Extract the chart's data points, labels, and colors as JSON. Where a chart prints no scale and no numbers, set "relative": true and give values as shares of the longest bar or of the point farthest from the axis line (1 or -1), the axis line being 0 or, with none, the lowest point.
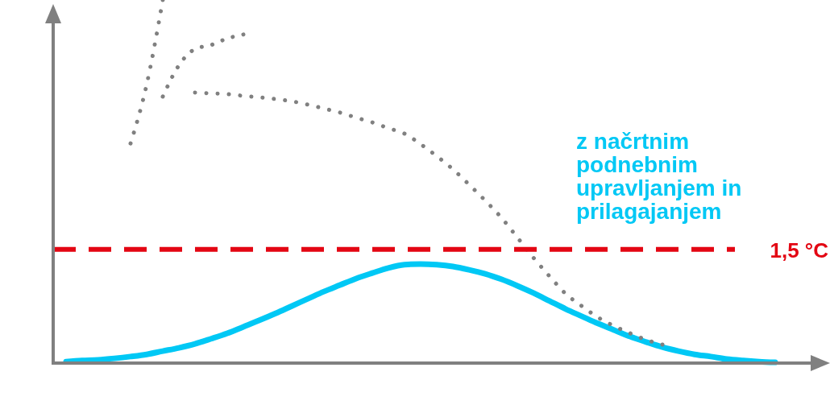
{
  "chart_data": {
    "type": "line",
    "relative": true,
    "categories": [
      null,
      null,
      null,
      null,
      null,
      null,
      null,
      null,
      null,
      null,
      null,
      null,
      null,
      null,
      null,
      null,
      null,
      null,
      null,
      null,
      null,
      null,
      null,
      null,
      null,
      null,
      null,
      null,
      null,
      null,
      null,
      null,
      null,
      null,
      null,
      null,
      null,
      null,
      null,
      null,
      null,
      null,
      null,
      null,
      null
    ],
    "series": [
      {
        "name": "z načrtnim podnebnim upravljanjem in prilagajanjem",
        "color": "#00c8f5",
        "line_style": "solid",
        "values": [
          0.004,
          0.007,
          0.009,
          0.013,
          0.018,
          0.024,
          0.033,
          0.042,
          0.053,
          0.067,
          0.082,
          0.1,
          0.118,
          0.137,
          0.157,
          0.177,
          0.197,
          0.215,
          0.233,
          0.248,
          0.262,
          0.271,
          0.273,
          0.271,
          0.266,
          0.257,
          0.246,
          0.231,
          0.213,
          0.193,
          0.171,
          0.149,
          0.129,
          0.109,
          0.091,
          0.073,
          0.058,
          0.044,
          0.033,
          0.024,
          0.018,
          0.011,
          0.007,
          0.004,
          0.002
        ]
      },
      {
        "color": "#808080",
        "line_style": "dotted",
        "values": [
          null,
          null,
          null,
          null,
          0.605,
          0.767,
          1,
          null,
          null,
          null,
          null,
          null,
          null,
          null,
          null,
          null,
          null,
          null,
          null,
          null,
          null,
          null,
          null,
          null,
          null,
          null,
          null,
          null,
          null,
          null,
          null,
          null,
          null,
          null,
          null,
          null,
          null,
          null,
          null,
          null,
          null,
          null,
          null,
          null,
          null
        ]
      },
      {
        "color": "#808080",
        "line_style": "dotted",
        "values": [
          null,
          null,
          null,
          null,
          null,
          null,
          0.734,
          0.82,
          0.865,
          0.876,
          0.894,
          0.905,
          null,
          null,
          null,
          null,
          null,
          null,
          null,
          null,
          null,
          null,
          null,
          null,
          null,
          null,
          null,
          null,
          null,
          null,
          null,
          null,
          null,
          null,
          null,
          null,
          null,
          null,
          null,
          null,
          null,
          null,
          null,
          null,
          null
        ]
      },
      {
        "color": "#808080",
        "line_style": "dotted",
        "values": [
          null,
          null,
          null,
          null,
          null,
          null,
          null,
          null,
          0.745,
          0.743,
          0.741,
          0.736,
          0.732,
          0.727,
          0.721,
          0.712,
          0.701,
          0.69,
          0.676,
          0.663,
          0.647,
          0.632,
          0.603,
          0.57,
          0.534,
          0.492,
          0.448,
          0.401,
          0.346,
          0.29,
          0.239,
          0.191,
          0.157,
          0.126,
          0.102,
          0.082,
          0.064,
          0.051,
          null,
          null,
          null,
          null,
          null,
          null,
          null
        ]
      }
    ],
    "ref_lines": [
      {
        "axis": "y",
        "value": 0.313,
        "label": "1,5 °C",
        "color": "#e30613",
        "line_style": "dashed"
      }
    ]
  }
}
